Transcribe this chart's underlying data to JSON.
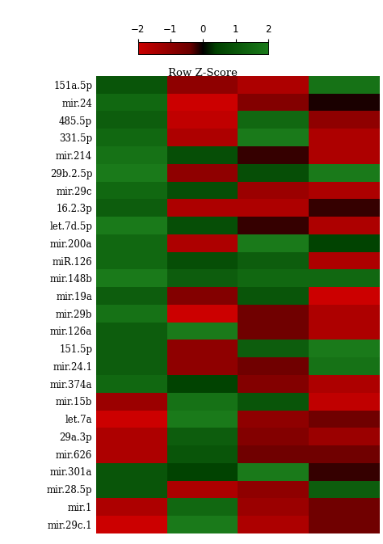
{
  "row_labels": [
    "151a.5p",
    "mir.24",
    "485.5p",
    "331.5p",
    "mir.214",
    "29b.2.5p",
    "mir.29c",
    "16.2.3p",
    "let.7d.5p",
    "mir.200a",
    "miR.126",
    "mir.148b",
    "mir.19a",
    "mir.29b",
    "mir.126a",
    "151.5p",
    "mir.24.1",
    "mir.374a",
    "mir.15b",
    "let.7a",
    "29a.3p",
    "mir.626",
    "mir.301a",
    "mir.28.5p",
    "mir.1",
    "mir.29c.1"
  ],
  "data": [
    [
      1.0,
      -1.0,
      -1.5,
      1.8
    ],
    [
      1.5,
      -2.0,
      -0.8,
      -0.1
    ],
    [
      1.2,
      -1.8,
      1.5,
      -1.0
    ],
    [
      1.5,
      -1.5,
      2.0,
      -1.5
    ],
    [
      1.8,
      0.8,
      -0.2,
      -1.5
    ],
    [
      2.0,
      -1.0,
      0.8,
      2.0
    ],
    [
      1.5,
      0.8,
      -1.2,
      -1.5
    ],
    [
      1.2,
      -1.5,
      -1.5,
      -0.2
    ],
    [
      2.0,
      0.8,
      -0.2,
      -1.5
    ],
    [
      1.5,
      -1.5,
      2.0,
      0.5
    ],
    [
      1.5,
      0.8,
      1.2,
      -1.5
    ],
    [
      2.0,
      1.2,
      1.5,
      1.5
    ],
    [
      1.2,
      -0.8,
      1.0,
      -2.0
    ],
    [
      1.8,
      -2.0,
      -0.5,
      -1.5
    ],
    [
      1.2,
      2.0,
      -0.5,
      -1.5
    ],
    [
      1.2,
      -1.0,
      1.2,
      2.0
    ],
    [
      1.2,
      -1.0,
      -0.5,
      1.8
    ],
    [
      1.5,
      0.5,
      -0.8,
      -1.5
    ],
    [
      -1.2,
      1.8,
      1.0,
      -1.8
    ],
    [
      -2.0,
      2.0,
      -1.0,
      -0.5
    ],
    [
      -1.5,
      1.2,
      -0.8,
      -1.2
    ],
    [
      -1.5,
      1.0,
      -0.5,
      -0.5
    ],
    [
      1.0,
      0.5,
      2.0,
      -0.2
    ],
    [
      1.0,
      -1.5,
      -1.0,
      1.2
    ],
    [
      -1.5,
      1.5,
      -1.2,
      -0.5
    ],
    [
      -2.0,
      2.0,
      -1.5,
      -0.5
    ]
  ],
  "vmin": -2,
  "vmax": 2,
  "colorbar_label": "Row Z-Score",
  "colorbar_ticks": [
    -2,
    -1,
    0,
    1,
    2
  ],
  "background_color": "#ffffff",
  "label_fontsize": 8.5,
  "colorbar_fontsize": 8.5,
  "colorbar_label_fontsize": 9.5
}
